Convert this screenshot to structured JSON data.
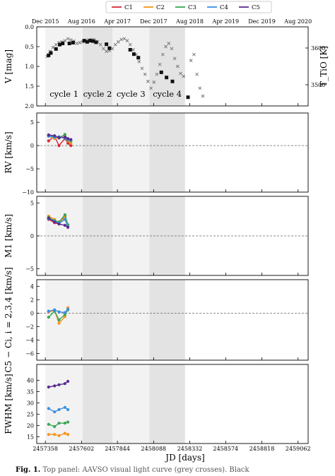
{
  "legend": [
    "C1",
    "C2",
    "C3",
    "C4",
    "C5"
  ],
  "colors": {
    "C1": "#d62839",
    "C2": "#f7941d",
    "C3": "#3aa655",
    "C4": "#3a8ee6",
    "C5": "#5b2a91"
  },
  "top_dates": [
    "Dec 2015",
    "Aug 2016",
    "Apr 2017",
    "Dec 2017",
    "Aug 2018",
    "Apr 2019",
    "Dec 2019",
    "Aug 2020"
  ],
  "top_date_jd": [
    2457358,
    2457602,
    2457844,
    2458088,
    2458332,
    2458574,
    2458818,
    2459062
  ],
  "cycles": [
    {
      "label": "cycle 1",
      "start": 2457358,
      "end": 2457610,
      "shade": "#f2f2f2"
    },
    {
      "label": "cycle 2",
      "start": 2457610,
      "end": 2457810,
      "shade": "#e3e3e3"
    },
    {
      "label": "cycle 3",
      "start": 2457810,
      "end": 2458060,
      "shade": "#f2f2f2"
    },
    {
      "label": "cycle 4",
      "start": 2458060,
      "end": 2458300,
      "shade": "#e3e3e3"
    }
  ],
  "xaxis": {
    "label": "JD [days]",
    "range": [
      2457300,
      2459130
    ],
    "ticks": [
      "2457358",
      "2457602",
      "2457844",
      "2458088",
      "2458332",
      "2458574",
      "2458818",
      "2459062"
    ]
  },
  "caption": {
    "prefix": "Fig. 1.",
    "text": " Top panel: AAVSO visual light curve (grey crosses). Black"
  },
  "panels": [
    {
      "name": "V",
      "ylabel": "V [mag]",
      "ylabel2": "T_TiO [K]",
      "range": [
        0.0,
        2.0
      ],
      "inverted": true,
      "ticks": [
        "0.0",
        "0.5",
        "1.0",
        "1.5",
        "2.0"
      ],
      "ticks2": [
        "3600",
        "3500"
      ]
    },
    {
      "name": "RV",
      "ylabel": "RV [km/s]",
      "range": [
        -10,
        7
      ],
      "ticks": [
        "5",
        "0",
        "−5",
        "−10"
      ]
    },
    {
      "name": "M1",
      "ylabel": "M1 [km/s]",
      "range": [
        -6,
        6
      ],
      "ticks": [
        "5",
        "0",
        "−5"
      ]
    },
    {
      "name": "Cdiff",
      "ylabel": "C5 − Ci, i = 2,3,4 [km/s]",
      "range": [
        -7,
        5
      ],
      "ticks": [
        "4",
        "2",
        "0",
        "−2",
        "−4",
        "−6"
      ]
    },
    {
      "name": "FWHM",
      "ylabel": "FWHM [km/s]",
      "range": [
        12,
        47
      ],
      "ticks": [
        "40",
        "35",
        "30",
        "25",
        "20",
        "15"
      ]
    }
  ],
  "chart_data": [
    {
      "type": "scatter",
      "panel": "V",
      "title": "",
      "xlabel": "",
      "ylabel": "V [mag]",
      "ylim": [
        2.0,
        0.0
      ],
      "series": [
        {
          "name": "AAVSO visual",
          "style": "grey crosses",
          "x": [
            2457370,
            2457390,
            2457410,
            2457430,
            2457450,
            2457470,
            2457490,
            2457510,
            2457530,
            2457550,
            2457570,
            2457590,
            2457610,
            2457630,
            2457650,
            2457670,
            2457690,
            2457710,
            2457730,
            2457750,
            2457770,
            2457790,
            2457810,
            2457830,
            2457850,
            2457870,
            2457890,
            2457910,
            2457930,
            2457950,
            2457970,
            2457990,
            2458010,
            2458030,
            2458050,
            2458070,
            2458090,
            2458110,
            2458130,
            2458150,
            2458170,
            2458190,
            2458210,
            2458230,
            2458250,
            2458270,
            2458290,
            2458340,
            2458360,
            2458380,
            2458400,
            2458420
          ],
          "y": [
            0.75,
            0.62,
            0.52,
            0.45,
            0.4,
            0.38,
            0.35,
            0.3,
            0.33,
            0.36,
            0.42,
            0.4,
            0.38,
            0.35,
            0.33,
            0.32,
            0.33,
            0.38,
            0.45,
            0.55,
            0.62,
            0.6,
            0.55,
            0.45,
            0.38,
            0.32,
            0.3,
            0.35,
            0.45,
            0.58,
            0.7,
            0.88,
            1.05,
            1.2,
            1.38,
            1.55,
            1.4,
            1.2,
            0.95,
            0.7,
            0.5,
            0.42,
            0.55,
            0.8,
            1.0,
            1.18,
            1.25,
            0.85,
            0.7,
            1.2,
            1.55,
            1.75
          ]
        },
        {
          "name": "T_TiO",
          "style": "black squares",
          "x": [
            2457380,
            2457395,
            2457430,
            2457455,
            2457475,
            2457520,
            2457545,
            2457620,
            2457640,
            2457660,
            2457680,
            2457700,
            2457770,
            2457790,
            2457930,
            2457955,
            2457985,
            2458140,
            2458175,
            2458215,
            2458320
          ],
          "y": [
            0.72,
            0.66,
            0.56,
            0.45,
            0.42,
            0.42,
            0.4,
            0.35,
            0.38,
            0.35,
            0.36,
            0.39,
            0.44,
            0.54,
            0.58,
            0.69,
            0.78,
            1.15,
            1.28,
            1.38,
            1.78
          ]
        }
      ]
    },
    {
      "type": "line",
      "panel": "RV",
      "ylabel": "RV [km/s]",
      "ylim": [
        -10,
        7
      ],
      "series": [
        {
          "name": "C1",
          "x": [
            2457380,
            2457420,
            2457450,
            2457490,
            2457510,
            2457530
          ],
          "y": [
            1.0,
            2.0,
            0.0,
            1.5,
            0.5,
            0.0
          ]
        },
        {
          "name": "C2",
          "x": [
            2457380,
            2457420,
            2457450,
            2457490,
            2457510,
            2457530
          ],
          "y": [
            2.0,
            1.5,
            1.8,
            2.2,
            1.0,
            0.5
          ]
        },
        {
          "name": "C3",
          "x": [
            2457380,
            2457420,
            2457450,
            2457490,
            2457510,
            2457530
          ],
          "y": [
            2.2,
            2.0,
            1.6,
            2.4,
            1.2,
            1.0
          ]
        },
        {
          "name": "C4",
          "x": [
            2457380,
            2457420,
            2457450,
            2457490,
            2457510,
            2457530
          ],
          "y": [
            2.0,
            1.8,
            1.9,
            1.6,
            1.3,
            1.2
          ]
        },
        {
          "name": "C5",
          "x": [
            2457380,
            2457420,
            2457450,
            2457490,
            2457510,
            2457530
          ],
          "y": [
            2.3,
            2.1,
            1.7,
            1.8,
            1.5,
            1.3
          ]
        }
      ]
    },
    {
      "type": "line",
      "panel": "M1",
      "ylabel": "M1 [km/s]",
      "ylim": [
        -6,
        6
      ],
      "series": [
        {
          "name": "C1",
          "x": [
            2457380,
            2457420,
            2457450,
            2457490,
            2457510
          ],
          "y": [
            2.5,
            2.0,
            1.8,
            3.0,
            1.5
          ]
        },
        {
          "name": "C2",
          "x": [
            2457380,
            2457420,
            2457450,
            2457490,
            2457510
          ],
          "y": [
            3.0,
            2.5,
            2.0,
            2.8,
            1.6
          ]
        },
        {
          "name": "C3",
          "x": [
            2457380,
            2457420,
            2457450,
            2457490,
            2457510
          ],
          "y": [
            2.8,
            2.3,
            2.1,
            3.2,
            1.7
          ]
        },
        {
          "name": "C4",
          "x": [
            2457380,
            2457420,
            2457450,
            2457490,
            2457510
          ],
          "y": [
            2.6,
            2.2,
            1.9,
            2.5,
            1.4
          ]
        },
        {
          "name": "C5",
          "x": [
            2457380,
            2457420,
            2457450,
            2457490,
            2457510
          ],
          "y": [
            2.7,
            2.1,
            1.8,
            1.6,
            1.3
          ]
        }
      ]
    },
    {
      "type": "line",
      "panel": "Cdiff",
      "ylabel": "C5 − Ci, i = 2,3,4 [km/s]",
      "ylim": [
        -7,
        5
      ],
      "series": [
        {
          "name": "C2",
          "x": [
            2457380,
            2457420,
            2457450,
            2457490,
            2457510
          ],
          "y": [
            0.2,
            0.4,
            -1.5,
            -0.5,
            0.8
          ]
        },
        {
          "name": "C3",
          "x": [
            2457380,
            2457420,
            2457450,
            2457490,
            2457510
          ],
          "y": [
            -0.6,
            0.3,
            -1.0,
            -0.2,
            0.5
          ]
        },
        {
          "name": "C4",
          "x": [
            2457380,
            2457420,
            2457450,
            2457490,
            2457510
          ],
          "y": [
            0.3,
            0.5,
            0.2,
            0.1,
            0.6
          ]
        }
      ]
    },
    {
      "type": "line",
      "panel": "FWHM",
      "ylabel": "FWHM [km/s]",
      "ylim": [
        12,
        47
      ],
      "series": [
        {
          "name": "C2",
          "x": [
            2457380,
            2457420,
            2457450,
            2457490,
            2457510
          ],
          "y": [
            16.0,
            16.0,
            15.5,
            16.5,
            16.0
          ]
        },
        {
          "name": "C3",
          "x": [
            2457380,
            2457420,
            2457450,
            2457490,
            2457510
          ],
          "y": [
            20.5,
            19.5,
            21.0,
            21.0,
            21.5
          ]
        },
        {
          "name": "C4",
          "x": [
            2457380,
            2457420,
            2457450,
            2457490,
            2457510
          ],
          "y": [
            27.5,
            26.0,
            27.0,
            28.0,
            27.0
          ]
        },
        {
          "name": "C5",
          "x": [
            2457380,
            2457420,
            2457450,
            2457490,
            2457510
          ],
          "y": [
            37.0,
            37.5,
            38.0,
            38.5,
            39.5
          ]
        }
      ]
    }
  ]
}
